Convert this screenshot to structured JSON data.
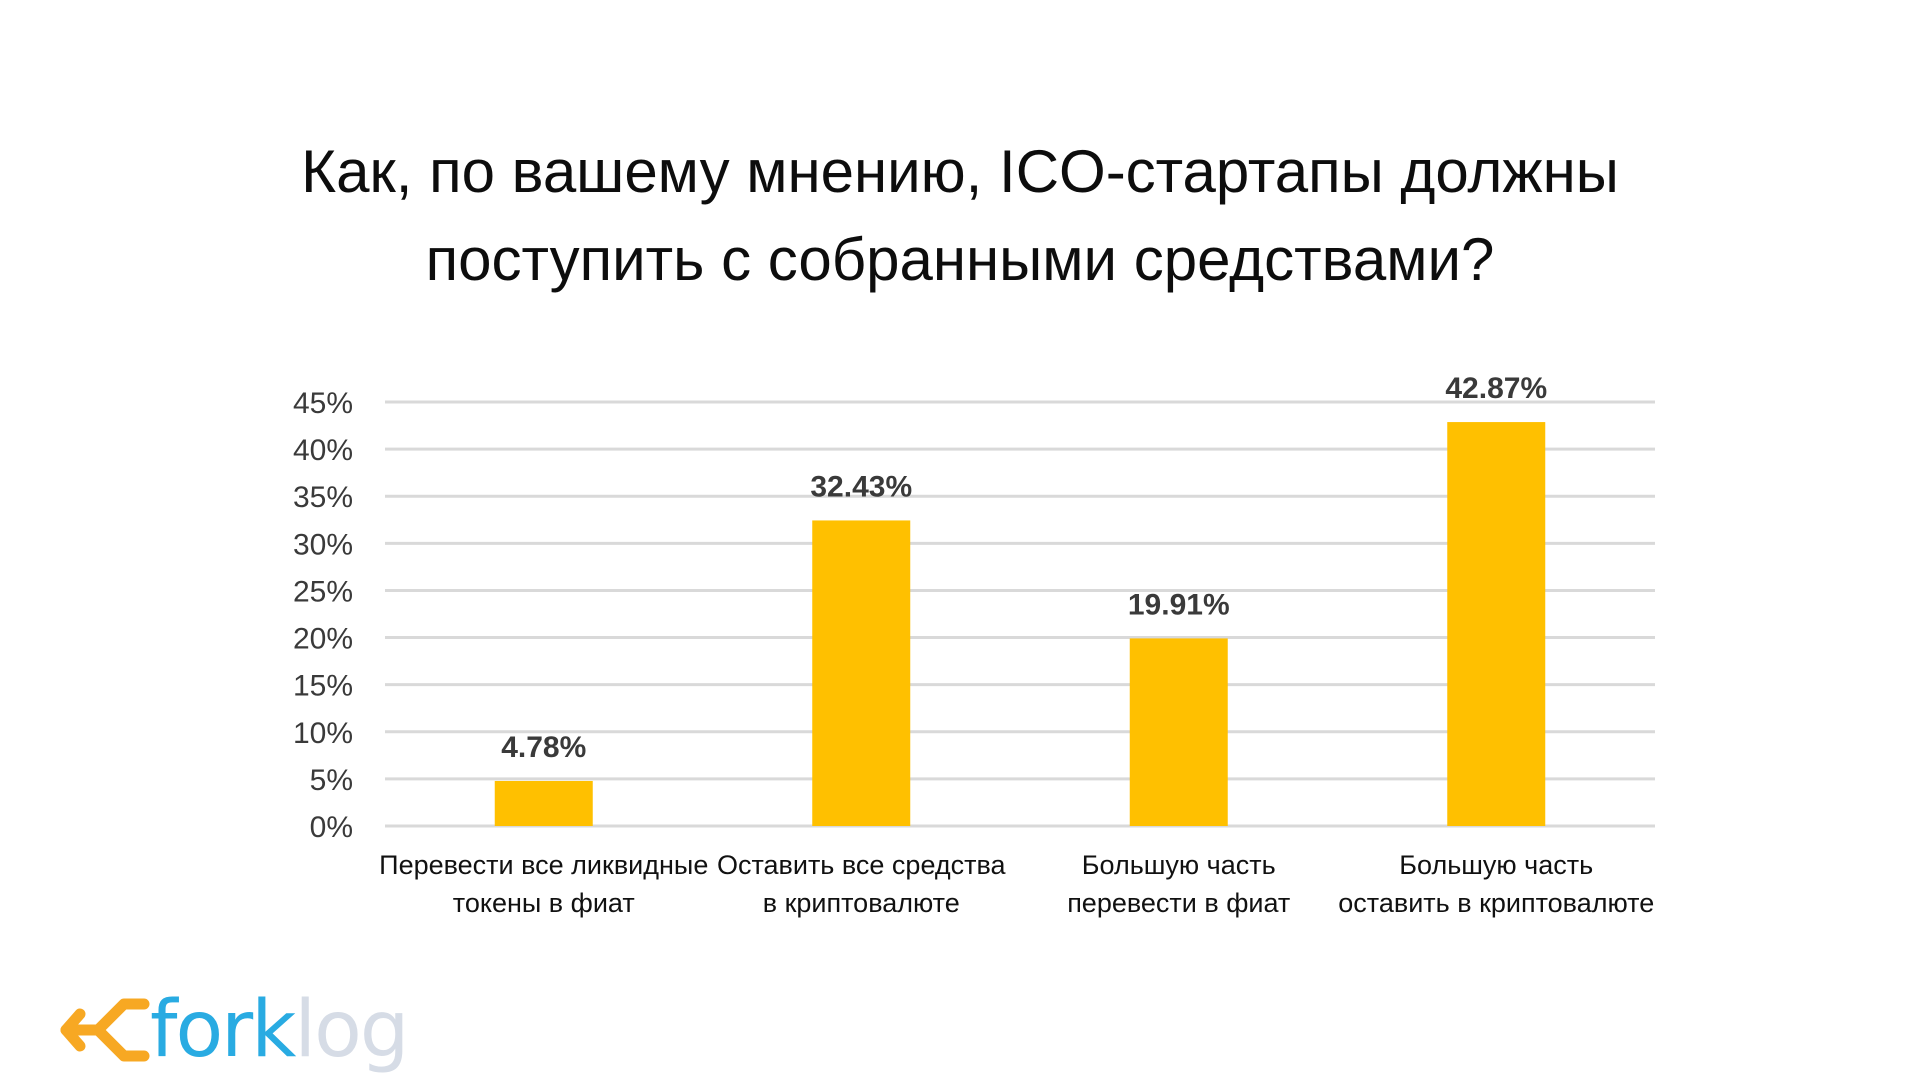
{
  "title_lines": [
    "Как, по вашему мнению, ICO-стартапы должны",
    "поступить с собранными средствами?"
  ],
  "chart_data": {
    "type": "bar",
    "title": "Как, по вашему мнению, ICO-стартапы должны поступить с собранными средствами?",
    "categories": [
      [
        "Перевести все ликвидные",
        "токены в фиат"
      ],
      [
        "Оставить все средства",
        "в криптовалюте"
      ],
      [
        "Большую часть",
        "перевести в фиат"
      ],
      [
        "Большую часть",
        "оставить в криптовалюте"
      ]
    ],
    "values": [
      4.78,
      32.43,
      19.91,
      42.87
    ],
    "value_labels": [
      "4.78%",
      "32.43%",
      "19.91%",
      "42.87%"
    ],
    "ylim": [
      0,
      45
    ],
    "yticks": [
      0,
      5,
      10,
      15,
      20,
      25,
      30,
      35,
      40,
      45
    ],
    "ytick_labels": [
      "0%",
      "5%",
      "10%",
      "15%",
      "20%",
      "25%",
      "30%",
      "35%",
      "40%",
      "45%"
    ],
    "xlabel": "",
    "ylabel": "",
    "grid": true,
    "bar_color": "#FFC000",
    "grid_color": "#D9D9D9"
  },
  "logo": {
    "fork": "fork",
    "log": "log",
    "arrow_color": "#F7A823",
    "fork_color": "#29ABE2",
    "log_color": "#D6DCE6"
  }
}
